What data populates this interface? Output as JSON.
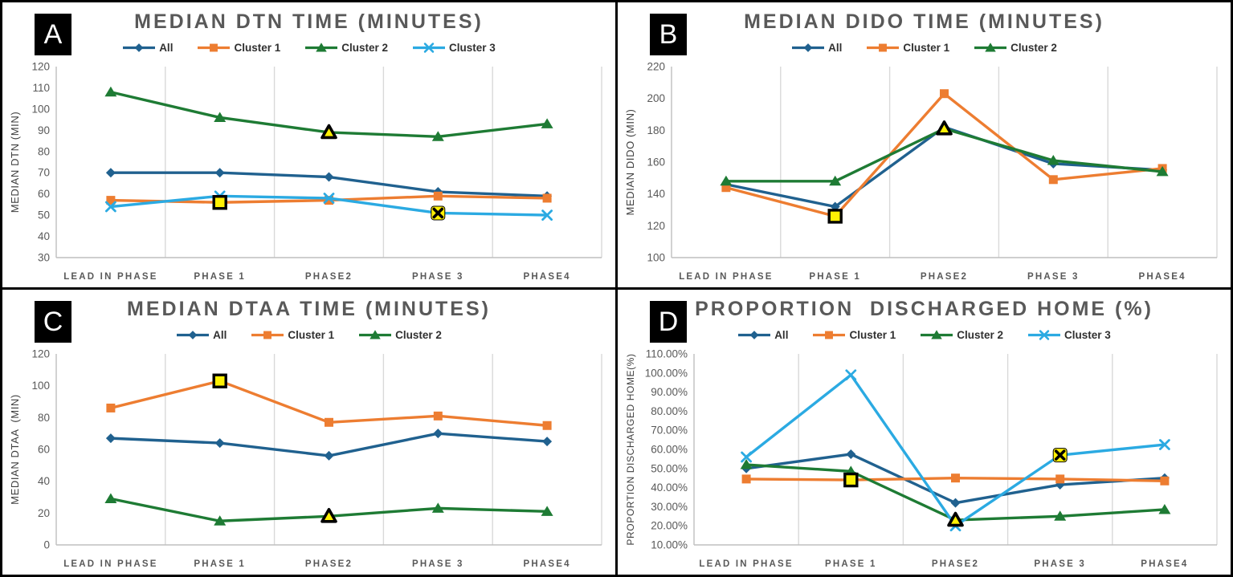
{
  "figure": {
    "layout": "2x2 panel line charts",
    "panel_labels": [
      "A",
      "B",
      "C",
      "D"
    ],
    "colors": {
      "all": "#20618F",
      "cluster1": "#ED7D31",
      "cluster2": "#1E7B34",
      "cluster3": "#2BAAE2",
      "highlight_fill": "#FFF104",
      "highlight_stroke": "#000000",
      "title_text": "#595959",
      "axis_text": "#595959",
      "gridline": "#D9D9D9",
      "axis_line": "#BFBFBF"
    }
  },
  "chart_data": [
    {
      "type": "line",
      "badge": "A",
      "title": "MEDIAN DTN TIME (MINUTES)",
      "ylabel": "MEDIAN DTN (MIN)",
      "ymin": 30,
      "ymax": 120,
      "ystep": 10,
      "tick_format": "int",
      "grid": "vertical",
      "legend_position": "top",
      "categories": [
        "LEAD IN PHASE",
        "PHASE 1",
        "PHASE2",
        "PHASE 3",
        "PHASE4"
      ],
      "series": [
        {
          "name": "All",
          "color": "#20618F",
          "marker": "diamond",
          "values": [
            70,
            70,
            68,
            61,
            59
          ]
        },
        {
          "name": "Cluster 1",
          "color": "#ED7D31",
          "marker": "square",
          "values": [
            57,
            56,
            57,
            59,
            58
          ]
        },
        {
          "name": "Cluster 2",
          "color": "#1E7B34",
          "marker": "triangle",
          "values": [
            108,
            96,
            89,
            87,
            93
          ]
        },
        {
          "name": "Cluster 3",
          "color": "#2BAAE2",
          "marker": "x",
          "values": [
            54,
            59,
            58,
            51,
            50
          ]
        }
      ],
      "highlights": [
        {
          "series": "Cluster 1",
          "index": 1
        },
        {
          "series": "Cluster 2",
          "index": 2
        },
        {
          "series": "Cluster 3",
          "index": 3
        }
      ]
    },
    {
      "type": "line",
      "badge": "B",
      "title": "MEDIAN DIDO TIME (MINUTES)",
      "ylabel": "MEDIAN DIDO (MIN)",
      "ymin": 100,
      "ymax": 220,
      "ystep": 20,
      "tick_format": "int",
      "grid": "vertical",
      "legend_position": "top",
      "categories": [
        "LEAD IN PHASE",
        "PHASE 1",
        "PHASE2",
        "PHASE 3",
        "PHASE4"
      ],
      "series": [
        {
          "name": "All",
          "color": "#20618F",
          "marker": "diamond",
          "values": [
            146,
            132,
            182,
            159,
            155
          ]
        },
        {
          "name": "Cluster 1",
          "color": "#ED7D31",
          "marker": "square",
          "values": [
            144,
            126,
            203,
            149,
            156
          ]
        },
        {
          "name": "Cluster 2",
          "color": "#1E7B34",
          "marker": "triangle",
          "values": [
            148,
            148,
            181,
            161,
            154
          ]
        }
      ],
      "highlights": [
        {
          "series": "Cluster 1",
          "index": 1
        },
        {
          "series": "Cluster 2",
          "index": 2
        }
      ]
    },
    {
      "type": "line",
      "badge": "C",
      "title": "MEDIAN DTAA TIME (MINUTES)",
      "ylabel": "MEDIAN DTAA  (MIN)",
      "ymin": 0,
      "ymax": 120,
      "ystep": 20,
      "tick_format": "int",
      "grid": "vertical",
      "legend_position": "top",
      "categories": [
        "LEAD IN PHASE",
        "PHASE 1",
        "PHASE2",
        "PHASE 3",
        "PHASE4"
      ],
      "series": [
        {
          "name": "All",
          "color": "#20618F",
          "marker": "diamond",
          "values": [
            67,
            64,
            56,
            70,
            65
          ]
        },
        {
          "name": "Cluster 1",
          "color": "#ED7D31",
          "marker": "square",
          "values": [
            86,
            103,
            77,
            81,
            75
          ]
        },
        {
          "name": "Cluster 2",
          "color": "#1E7B34",
          "marker": "triangle",
          "values": [
            29,
            15,
            18,
            23,
            21
          ]
        }
      ],
      "highlights": [
        {
          "series": "Cluster 1",
          "index": 1
        },
        {
          "series": "Cluster 2",
          "index": 2
        }
      ]
    },
    {
      "type": "line",
      "badge": "D",
      "title": "PROPORTION  DISCHARGED HOME (%)",
      "ylabel": "PROPORTION DISCHARGED HOME(%)",
      "ymin": 10,
      "ymax": 110,
      "ystep": 10,
      "tick_format": "percent2",
      "grid": "vertical",
      "legend_position": "top",
      "categories": [
        "LEAD IN PHASE",
        "PHASE 1",
        "PHASE2",
        "PHASE 3",
        "PHASE4"
      ],
      "series": [
        {
          "name": "All",
          "color": "#20618F",
          "marker": "diamond",
          "values": [
            50,
            57.5,
            32,
            41.5,
            45
          ]
        },
        {
          "name": "Cluster 1",
          "color": "#ED7D31",
          "marker": "square",
          "values": [
            44.5,
            44,
            45,
            44.5,
            43.5
          ]
        },
        {
          "name": "Cluster 2",
          "color": "#1E7B34",
          "marker": "triangle",
          "values": [
            52,
            48.5,
            23,
            25,
            28.5
          ]
        },
        {
          "name": "Cluster 3",
          "color": "#2BAAE2",
          "marker": "x",
          "values": [
            56,
            99,
            20,
            57,
            62.5
          ]
        }
      ],
      "highlights": [
        {
          "series": "Cluster 1",
          "index": 1
        },
        {
          "series": "Cluster 2",
          "index": 2
        },
        {
          "series": "Cluster 3",
          "index": 3
        }
      ]
    }
  ]
}
